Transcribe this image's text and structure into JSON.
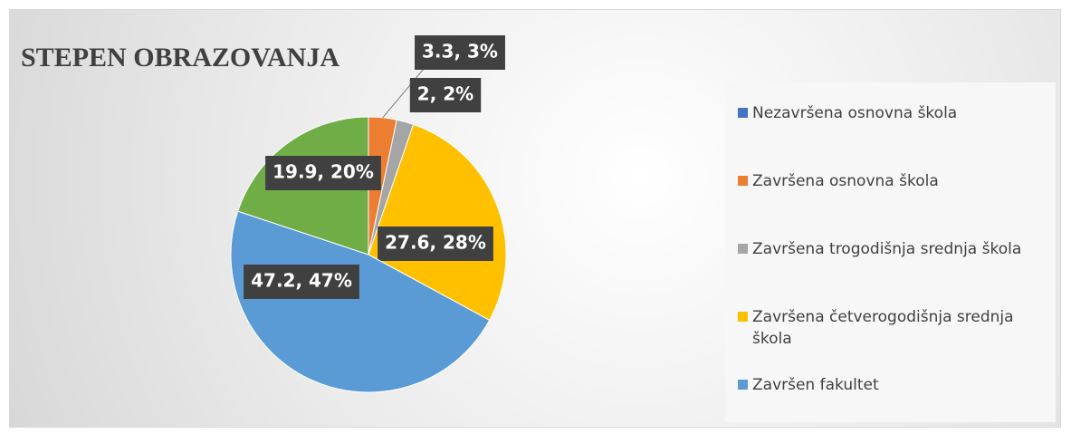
{
  "chart_data": {
    "type": "pie",
    "title": "STEPEN OBRAZOVANJA",
    "categories": [
      "Nezavršena osnovna škola",
      "Završena osnovna škola",
      "Završena trogodišnja srednja škola",
      "Završena četverogodišnja srednja škola",
      "Završen fakultet",
      null
    ],
    "values": [
      0,
      3.3,
      2,
      27.6,
      47.2,
      19.9
    ],
    "value_labels": [
      null,
      "3.3, 3%",
      "2, 2%",
      "27.6, 28%",
      "47.2, 47%",
      "19.9, 20%"
    ],
    "colors": [
      "#4472c4",
      "#ed7d31",
      "#a5a5a5",
      "#ffc000",
      "#5b9bd5",
      "#70ad47"
    ],
    "legend": "right"
  }
}
